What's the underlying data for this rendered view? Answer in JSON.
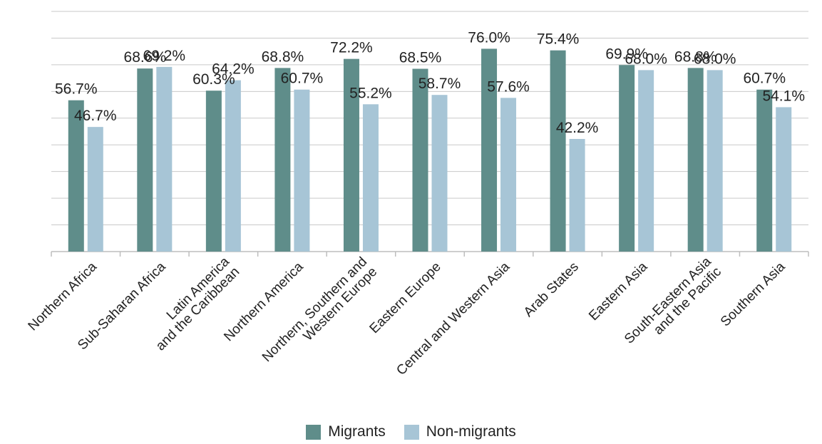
{
  "chart_data": {
    "type": "bar",
    "categories": [
      [
        "Northern Africa"
      ],
      [
        "Sub-Saharan Africa"
      ],
      [
        "Latin America",
        "and the Caribbean"
      ],
      [
        "Northern America"
      ],
      [
        "Northern, Southern and",
        "Western Europe"
      ],
      [
        "Eastern Europe"
      ],
      [
        "Central and Western Asia"
      ],
      [
        "Arab States"
      ],
      [
        "Eastern Asia"
      ],
      [
        "South-Eastern Asia",
        "and the Pacific"
      ],
      [
        "Southern Asia"
      ]
    ],
    "series": [
      {
        "name": "Migrants",
        "color": "#5f8d8a",
        "values": [
          56.7,
          68.6,
          60.3,
          68.8,
          72.2,
          68.5,
          76.0,
          75.4,
          69.9,
          68.8,
          60.7
        ],
        "labels": [
          "56.7%",
          "68.6%",
          "60.3%",
          "68.8%",
          "72.2%",
          "68.5%",
          "76.0%",
          "75.4%",
          "69.9%",
          "68.8%",
          "60.7%"
        ]
      },
      {
        "name": "Non-migrants",
        "color": "#a7c5d6",
        "values": [
          46.7,
          69.2,
          64.2,
          60.7,
          55.2,
          58.7,
          57.6,
          42.2,
          68.0,
          68.0,
          54.1
        ],
        "labels": [
          "46.7%",
          "69.2%",
          "64.2%",
          "60.7%",
          "55.2%",
          "58.7%",
          "57.6%",
          "42.2%",
          "68.0%",
          "68.0%",
          "54.1%"
        ]
      }
    ],
    "ylim": [
      0,
      90
    ],
    "grid": true,
    "gridline_color": "#c9c9c9",
    "legend_position": "bottom"
  }
}
